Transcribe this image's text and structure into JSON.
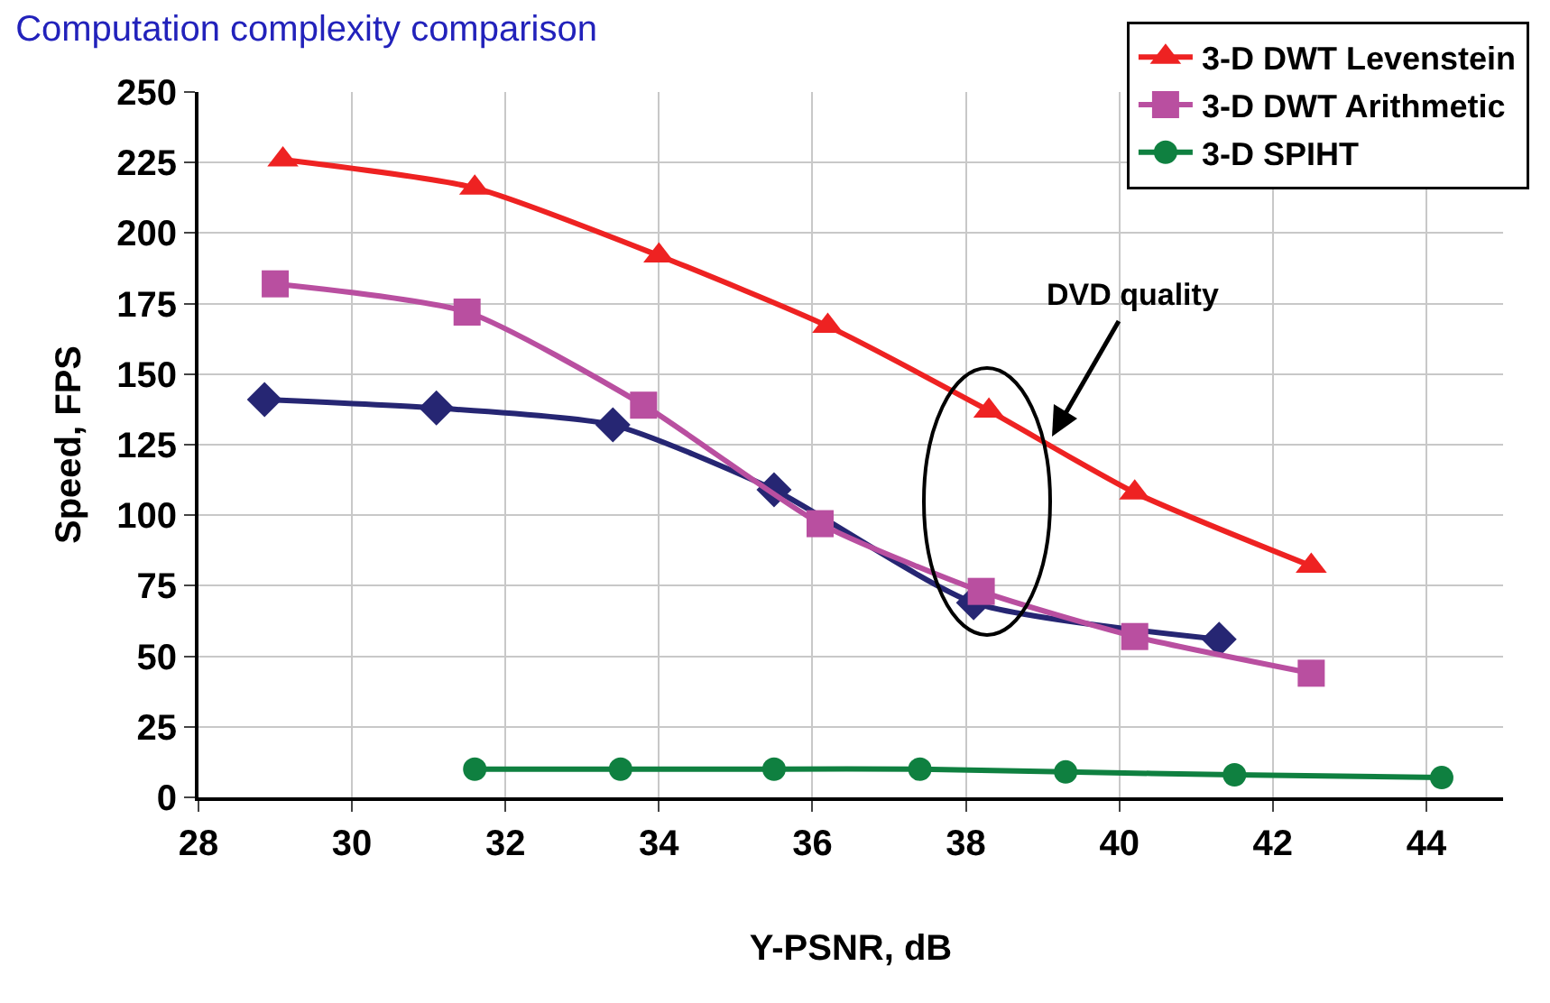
{
  "chart_data": {
    "type": "line",
    "title": "Computation complexity comparison",
    "xlabel": "Y-PSNR, dB",
    "ylabel": "Speed, FPS",
    "xlim": [
      28,
      45
    ],
    "xticks": [
      28,
      30,
      32,
      34,
      36,
      38,
      40,
      42,
      44
    ],
    "ylim": [
      0,
      250
    ],
    "yticks": [
      0,
      25,
      50,
      75,
      100,
      125,
      150,
      175,
      200,
      225,
      250
    ],
    "grid": true,
    "legend": "top right",
    "series": [
      {
        "color": "#262673",
        "marker": "diamond",
        "x": [
          28.86,
          31.1,
          33.4,
          35.5,
          38.1,
          41.3
        ],
        "values": [
          141,
          138,
          132,
          109,
          69,
          56
        ]
      },
      {
        "name": "3-D DWT Levenstein",
        "color": "#ee2222",
        "marker": "triangle",
        "x": [
          29.1,
          31.6,
          34.0,
          36.2,
          38.3,
          40.2,
          42.5
        ],
        "values": [
          226,
          216,
          192,
          167,
          137,
          108,
          82
        ]
      },
      {
        "name": "3-D DWT Arithmetic",
        "color": "#b94fa0",
        "marker": "square",
        "x": [
          29.0,
          31.5,
          33.8,
          36.1,
          38.2,
          40.2,
          42.5
        ],
        "values": [
          182,
          172,
          139,
          97,
          73,
          57,
          44
        ]
      },
      {
        "name": "3-D SPIHT",
        "color": "#0f8040",
        "marker": "circle",
        "x": [
          31.6,
          33.5,
          35.5,
          37.4,
          39.3,
          41.5,
          44.2
        ],
        "values": [
          10,
          10,
          10,
          10,
          9,
          8,
          7
        ]
      }
    ],
    "annotations": [
      "DVD quality"
    ]
  }
}
